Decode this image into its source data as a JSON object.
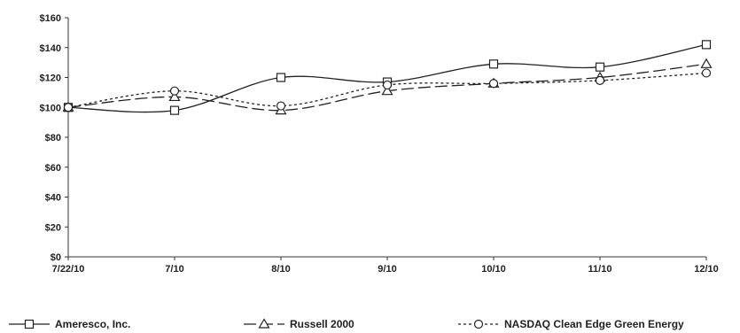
{
  "chart_data": {
    "type": "line",
    "x": [
      "7/22/10",
      "7/10",
      "8/10",
      "9/10",
      "10/10",
      "11/10",
      "12/10"
    ],
    "ylim": [
      0,
      160
    ],
    "yticks": [
      "$0",
      "$20",
      "$40",
      "$60",
      "$80",
      "$100",
      "$120",
      "$140",
      "$160"
    ],
    "ytick_values": [
      0,
      20,
      40,
      60,
      80,
      100,
      120,
      140,
      160
    ],
    "grid": false,
    "legend_position": "bottom",
    "series": [
      {
        "name": "Ameresco, Inc.",
        "marker": "square",
        "dash": "solid",
        "values": [
          100,
          98,
          120,
          117,
          129,
          127,
          142
        ]
      },
      {
        "name": "Russell 2000",
        "marker": "triangle",
        "dash": "long-dash",
        "values": [
          100,
          107,
          98,
          111,
          116,
          120,
          129
        ]
      },
      {
        "name": "NASDAQ Clean Edge Green Energy",
        "marker": "circle",
        "dash": "dotted",
        "values": [
          100,
          111,
          101,
          115,
          116,
          118,
          123
        ]
      }
    ]
  }
}
